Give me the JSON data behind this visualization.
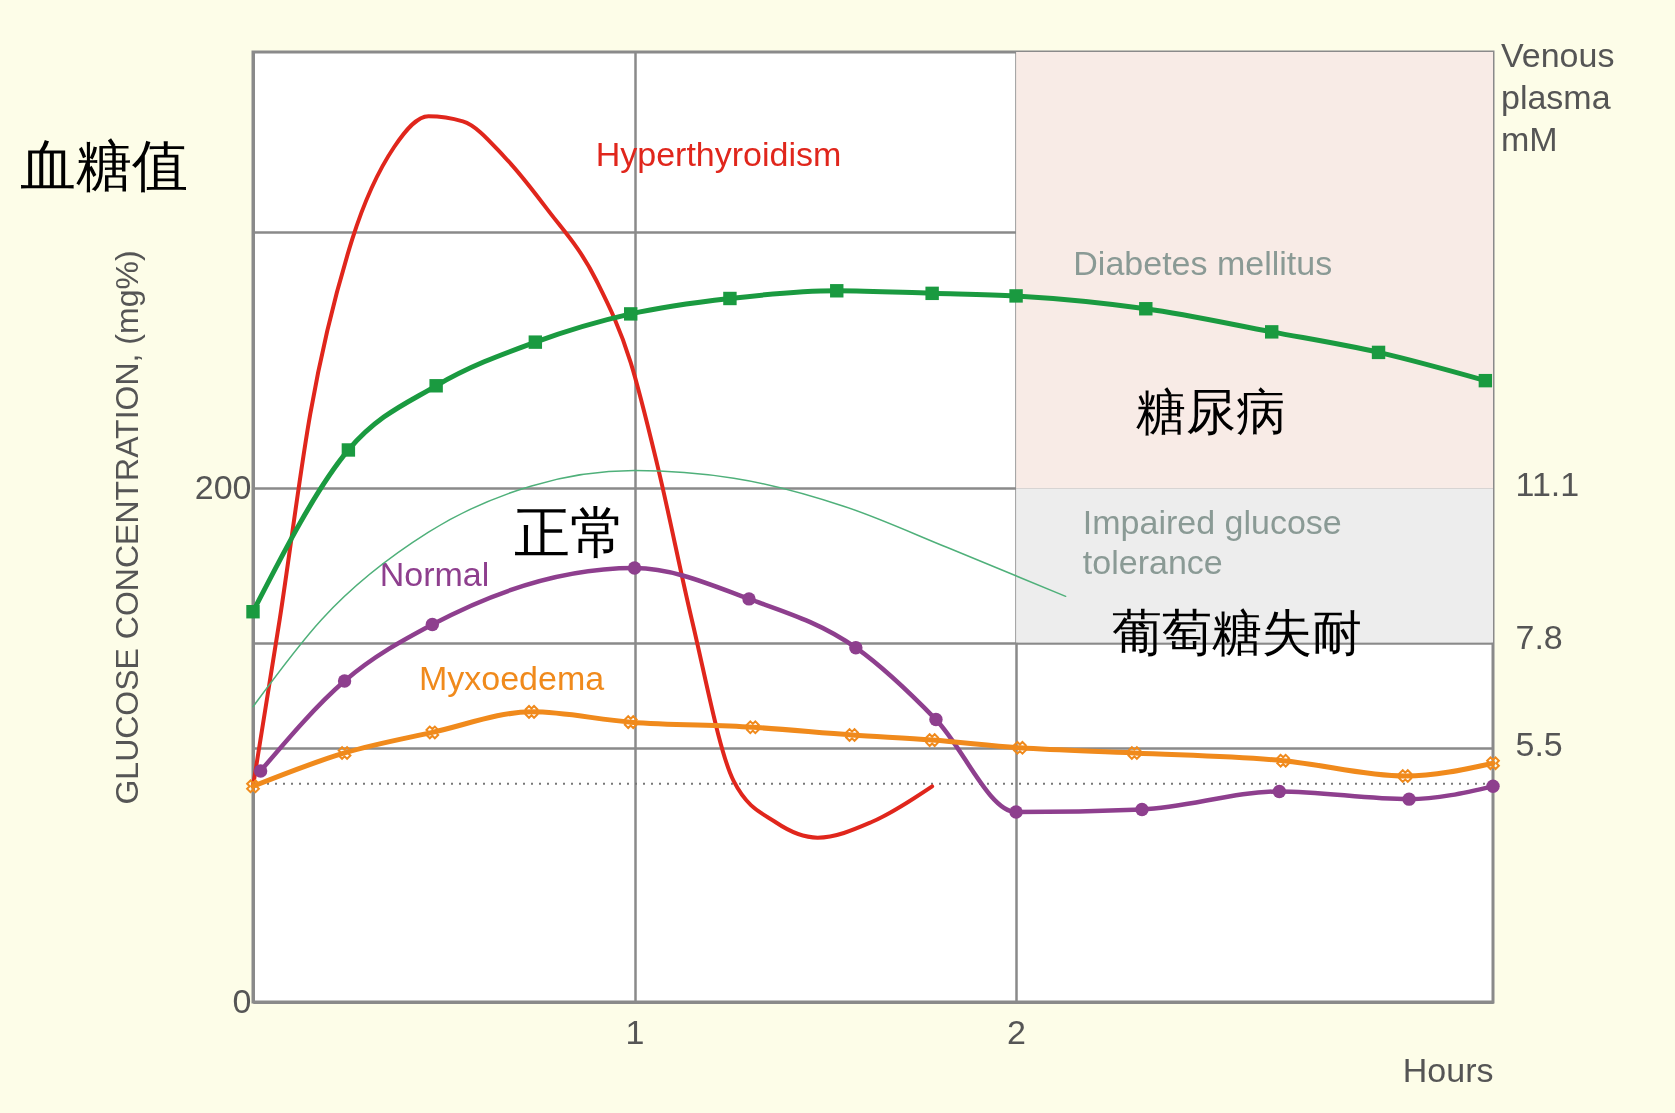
{
  "chart_data": {
    "type": "line",
    "ylabel": "GLUCOSE CONCENTRATION, (mg%)",
    "xlabel": "Hours",
    "y2label": "Venous plasma mM",
    "xlim": [
      0,
      3.25
    ],
    "xticks": [
      1,
      2
    ],
    "ylim": [
      0,
      370
    ],
    "yticks": [
      0,
      {
        "value": 99,
        "label": null
      },
      {
        "value": 140,
        "label": null
      },
      200,
      {
        "value": 300,
        "label": null
      }
    ],
    "y2lim": [
      0,
      20.4
    ],
    "y2ticks": [
      5.5,
      7.8,
      11.1
    ],
    "grid": true,
    "annotations": [
      "血糖值",
      "糖尿病",
      "葡萄糖失耐",
      "正常"
    ],
    "bands": [
      {
        "axis": "y",
        "from": 200,
        "to": 370,
        "label": "Diabetes mellitus",
        "color": "#f8ebe6"
      },
      {
        "axis": "y",
        "from": 140,
        "to": 200,
        "label": "Impaired glucose tolerance",
        "color": "#ededed"
      }
    ],
    "ref_lines": [
      {
        "axis": "y",
        "value": 85,
        "line_style": "dotted",
        "color": "#777777"
      }
    ],
    "series": [
      {
        "name": "Hyperthyroidism",
        "color": "#e0261c",
        "marker": "none",
        "x": [
          0,
          0.07,
          0.15,
          0.26,
          0.37,
          0.46,
          0.55,
          0.66,
          0.77,
          0.9,
          0.99,
          1.06,
          1.15,
          1.26,
          1.37,
          1.48,
          1.62,
          1.78
        ],
        "values": [
          84,
          149,
          229,
          297,
          333,
          345,
          343,
          329,
          309,
          281,
          249,
          209,
          149,
          86,
          70,
          64,
          70,
          84
        ]
      },
      {
        "color": "#1a9a40",
        "marker": "square",
        "x": [
          0,
          0.25,
          0.48,
          0.74,
          0.99,
          1.25,
          1.53,
          1.78,
          2,
          2.34,
          2.67,
          2.95,
          3.23
        ],
        "values": [
          152,
          215,
          240,
          257,
          268,
          274,
          277,
          276,
          275,
          270,
          261,
          253,
          242
        ]
      },
      {
        "name": "Normal",
        "color": "#8e3f8e",
        "marker": "circle",
        "x": [
          0.02,
          0.24,
          0.47,
          1,
          1.3,
          1.58,
          1.79,
          2,
          2.33,
          2.69,
          3.03,
          3.25
        ],
        "values": [
          90,
          125,
          147,
          169,
          157,
          138,
          110,
          74,
          75,
          82,
          79,
          84
        ]
      },
      {
        "name": "Myxoedema",
        "color": "#f08a1c",
        "marker": "cross",
        "x": [
          0,
          0.24,
          0.47,
          0.73,
          0.99,
          1.31,
          1.57,
          1.78,
          2.01,
          2.31,
          2.7,
          3.02,
          3.25
        ],
        "values": [
          84,
          97,
          105,
          113,
          109,
          107,
          104,
          102,
          99,
          97,
          94,
          88,
          93
        ]
      },
      {
        "color": "#4fb07a",
        "marker": "none",
        "x": [
          0,
          0.18,
          0.46,
          0.73,
          1,
          1.26,
          1.55,
          1.82,
          2.13
        ],
        "values": [
          115,
          149,
          183,
          201,
          207,
          204,
          193,
          177,
          158
        ]
      }
    ]
  }
}
